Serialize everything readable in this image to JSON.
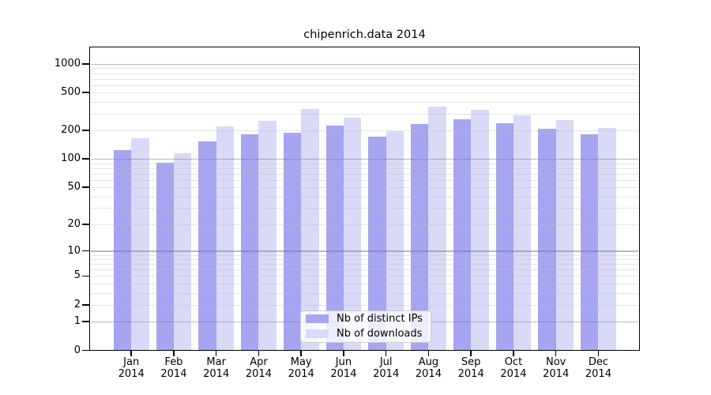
{
  "figure": {
    "title": "chipenrich.data 2014",
    "background_color": "#ffffff"
  },
  "chart_data": {
    "type": "bar",
    "title": "chipenrich.data 2014",
    "categories": [
      "Jan 2014",
      "Feb 2014",
      "Mar 2014",
      "Apr 2014",
      "May 2014",
      "Jun 2014",
      "Jul 2014",
      "Aug 2014",
      "Sep 2014",
      "Oct 2014",
      "Nov 2014",
      "Dec 2014"
    ],
    "series": [
      {
        "name": "Nb of distinct IPs",
        "color": "#a5a5f2",
        "values": [
          124,
          92,
          152,
          182,
          191,
          224,
          171,
          234,
          260,
          239,
          210,
          184
        ]
      },
      {
        "name": "Nb of downloads",
        "color": "#d9d9f8",
        "values": [
          165,
          114,
          219,
          253,
          337,
          275,
          196,
          357,
          327,
          290,
          258,
          214
        ]
      }
    ],
    "xlabel": "",
    "ylabel": "",
    "y_scale": "log10(1+x)",
    "y_ticks": [
      0,
      1,
      2,
      5,
      10,
      20,
      50,
      100,
      200,
      500,
      1000
    ],
    "ylim": [
      0,
      1500
    ],
    "grid": "horizontal, minor log gridlines, drawn over bars",
    "legend": {
      "position": "inside-bottom-center",
      "entries": [
        "Nb of distinct IPs",
        "Nb of downloads"
      ]
    }
  }
}
